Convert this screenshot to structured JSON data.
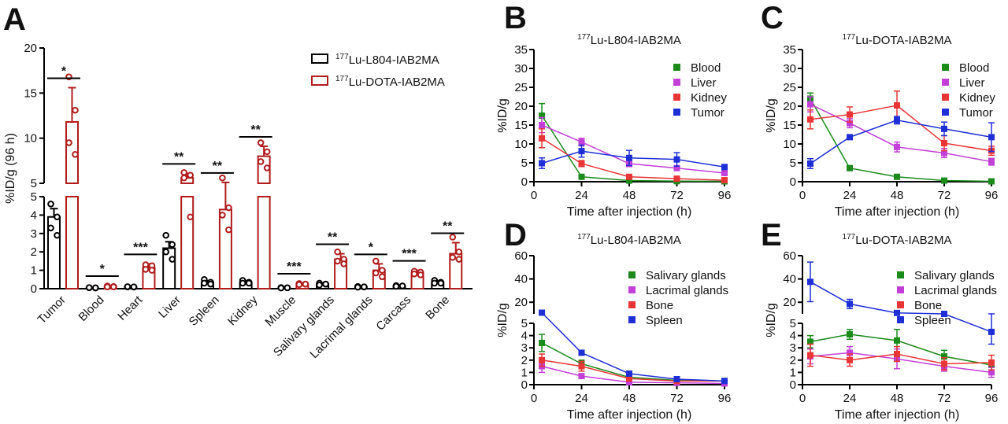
{
  "figure": {
    "panels": [
      {
        "id": "A",
        "letter": "A"
      },
      {
        "id": "B",
        "letter": "B"
      },
      {
        "id": "C",
        "letter": "C"
      },
      {
        "id": "D",
        "letter": "D"
      },
      {
        "id": "E",
        "letter": "E"
      }
    ]
  },
  "chart_data": [
    {
      "panel": "A",
      "type": "bar",
      "ylabel": "%ID/g (96 h)",
      "ylim": [
        0,
        20
      ],
      "y_axis_break": [
        5,
        5
      ],
      "y_ticks": [
        "0",
        "1",
        "2",
        "3",
        "4",
        "5",
        "5",
        "10",
        "15",
        "20"
      ],
      "categories": [
        "Tumor",
        "Blood",
        "Heart",
        "Liver",
        "Spleen",
        "Kidney",
        "Muscle",
        "Salivary glands",
        "Lacrimal glands",
        "Carcass",
        "Bone"
      ],
      "legend_position": "top-right",
      "series": [
        {
          "name": "177Lu-L804-IAB2MA",
          "label_sup": "177",
          "label_rest": "Lu-L804-IAB2MA",
          "color": "#000000",
          "values": [
            3.9,
            0.05,
            0.1,
            2.2,
            0.35,
            0.35,
            0.05,
            0.25,
            0.1,
            0.15,
            0.35
          ],
          "errors": [
            0.45,
            0.02,
            0.03,
            0.35,
            0.08,
            0.07,
            0.02,
            0.05,
            0.03,
            0.03,
            0.07
          ],
          "points": [
            [
              4.6,
              3.9,
              3.3,
              2.9
            ],
            [
              0.05,
              0.04,
              0.06,
              0.05
            ],
            [
              0.1,
              0.09,
              0.11,
              0.1
            ],
            [
              2.9,
              2.4,
              2.0,
              1.6
            ],
            [
              0.5,
              0.35,
              0.3,
              0.25
            ],
            [
              0.45,
              0.35,
              0.3,
              0.3
            ],
            [
              0.06,
              0.05,
              0.04,
              0.05
            ],
            [
              0.3,
              0.25,
              0.2,
              0.25
            ],
            [
              0.12,
              0.1,
              0.08,
              0.1
            ],
            [
              0.17,
              0.15,
              0.13,
              0.15
            ],
            [
              0.45,
              0.35,
              0.3,
              0.3
            ]
          ]
        },
        {
          "name": "177Lu-DOTA-IAB2MA",
          "label_sup": "177",
          "label_rest": "Lu-DOTA-IAB2MA",
          "color": "#b01c1c",
          "values": [
            11.8,
            0.12,
            1.15,
            5.6,
            4.3,
            8.0,
            0.25,
            1.6,
            1.0,
            0.85,
            1.9
          ],
          "errors": [
            3.8,
            0.05,
            0.2,
            0.5,
            0.8,
            1.1,
            0.05,
            0.3,
            0.35,
            0.15,
            0.6
          ],
          "points": [
            [
              16.8,
              13.1,
              9.5,
              8.2
            ],
            [
              0.15,
              0.12,
              0.1,
              0.1
            ],
            [
              1.3,
              1.25,
              1.05,
              1.0
            ],
            [
              6.2,
              5.9,
              5.6,
              3.9
            ],
            [
              5.6,
              4.4,
              4.0,
              3.2
            ],
            [
              9.5,
              8.5,
              7.4,
              6.7
            ],
            [
              0.28,
              0.25,
              0.22,
              0.25
            ],
            [
              2.0,
              1.6,
              1.5,
              1.35
            ],
            [
              1.5,
              1.0,
              0.85,
              0.65
            ],
            [
              0.95,
              0.9,
              0.8,
              0.75
            ],
            [
              2.8,
              2.0,
              1.7,
              1.6
            ]
          ]
        }
      ],
      "significance": [
        "*",
        "*",
        "***",
        "**",
        "**",
        "**",
        "***",
        "**",
        "*",
        "***",
        "**"
      ]
    },
    {
      "panel": "B",
      "type": "line",
      "title": "177Lu-L804-IAB2MA",
      "title_sup": "177",
      "title_rest": "Lu-L804-IAB2MA",
      "xlabel": "Time after injection (h)",
      "ylabel": "%ID/g",
      "x": [
        4,
        24,
        48,
        72,
        96
      ],
      "x_ticks": [
        "0",
        "24",
        "48",
        "72",
        "96"
      ],
      "y_ticks": [
        "0",
        "5",
        "10",
        "15",
        "20",
        "25",
        "30",
        "35"
      ],
      "xlim": [
        0,
        96
      ],
      "ylim": [
        0,
        35
      ],
      "legend_position": "top-right",
      "series": [
        {
          "name": "Blood",
          "color": "#1a8a1a",
          "values": [
            17.5,
            1.3,
            0.3,
            0.15,
            0.1
          ],
          "errors": [
            3.2,
            0.3,
            0.1,
            0.05,
            0.05
          ]
        },
        {
          "name": "Liver",
          "color": "#c23fd8",
          "values": [
            15.0,
            10.5,
            4.8,
            3.6,
            2.3
          ],
          "errors": [
            2.0,
            1.0,
            0.8,
            0.6,
            0.4
          ]
        },
        {
          "name": "Kidney",
          "color": "#e83535",
          "values": [
            11.5,
            4.8,
            1.3,
            0.8,
            0.4
          ],
          "errors": [
            2.5,
            0.8,
            0.3,
            0.2,
            0.1
          ]
        },
        {
          "name": "Tumor",
          "color": "#1f2fd6",
          "values": [
            4.9,
            8.1,
            6.3,
            5.9,
            3.9
          ],
          "errors": [
            1.4,
            1.6,
            2.0,
            1.8,
            0.6
          ]
        }
      ]
    },
    {
      "panel": "C",
      "type": "line",
      "title": "177Lu-DOTA-IAB2MA",
      "title_sup": "177",
      "title_rest": "Lu-DOTA-IAB2MA",
      "xlabel": "Time after injection (h)",
      "ylabel": "%ID/g",
      "x": [
        4,
        24,
        48,
        72,
        96
      ],
      "x_ticks": [
        "0",
        "24",
        "48",
        "72",
        "96"
      ],
      "y_ticks": [
        "0",
        "5",
        "10",
        "15",
        "20",
        "25",
        "30",
        "35"
      ],
      "xlim": [
        0,
        96
      ],
      "ylim": [
        0,
        35
      ],
      "legend_position": "top-right",
      "series": [
        {
          "name": "Blood",
          "color": "#1a8a1a",
          "values": [
            22.0,
            3.6,
            1.3,
            0.3,
            0.1
          ],
          "errors": [
            1.5,
            0.3,
            0.2,
            0.1,
            0.05
          ]
        },
        {
          "name": "Liver",
          "color": "#c23fd8",
          "values": [
            20.5,
            15.5,
            9.2,
            7.6,
            5.3
          ],
          "errors": [
            2.0,
            1.2,
            1.3,
            1.2,
            0.9
          ]
        },
        {
          "name": "Kidney",
          "color": "#e83535",
          "values": [
            16.5,
            17.8,
            20.2,
            10.2,
            8.2
          ],
          "errors": [
            2.5,
            2.0,
            3.8,
            2.0,
            1.2
          ]
        },
        {
          "name": "Tumor",
          "color": "#1f2fd6",
          "values": [
            4.8,
            11.8,
            16.3,
            14.0,
            11.8
          ],
          "errors": [
            1.3,
            0.6,
            1.0,
            1.8,
            3.8
          ]
        }
      ]
    },
    {
      "panel": "D",
      "type": "line",
      "title": "177Lu-L804-IAB2MA",
      "title_sup": "177",
      "title_rest": "Lu-L804-IAB2MA",
      "xlabel": "Time after injection (h)",
      "ylabel": "%ID/g",
      "x": [
        4,
        24,
        48,
        72,
        96
      ],
      "x_ticks": [
        "0",
        "24",
        "48",
        "72",
        "96"
      ],
      "y_ticks": [
        "0",
        "1",
        "2",
        "3",
        "4",
        "5",
        "20",
        "40",
        "60"
      ],
      "y_axis_break": [
        5,
        10
      ],
      "xlim": [
        0,
        96
      ],
      "legend_position": "top-right",
      "series": [
        {
          "name": "Salivary glands",
          "color": "#1a8a1a",
          "values": [
            3.4,
            1.7,
            0.6,
            0.35,
            0.3
          ],
          "errors": [
            0.7,
            0.3,
            0.1,
            0.05,
            0.05
          ]
        },
        {
          "name": "Lacrimal glands",
          "color": "#c23fd8",
          "values": [
            1.5,
            0.7,
            0.2,
            0.15,
            0.1
          ],
          "errors": [
            0.5,
            0.15,
            0.05,
            0.05,
            0.03
          ]
        },
        {
          "name": "Bone",
          "color": "#e83535",
          "values": [
            2.0,
            1.5,
            0.5,
            0.3,
            0.3
          ],
          "errors": [
            0.5,
            0.4,
            0.1,
            0.05,
            0.05
          ]
        },
        {
          "name": "Spleen",
          "color": "#1f2fd6",
          "values": [
            11.0,
            2.6,
            0.9,
            0.45,
            0.3
          ],
          "errors": [
            1.0,
            0.2,
            0.2,
            0.1,
            0.05
          ]
        }
      ]
    },
    {
      "panel": "E",
      "type": "line",
      "title": "177Lu-DOTA-IAB2MA",
      "title_sup": "177",
      "title_rest": "Lu-DOTA-IAB2MA",
      "xlabel": "Time after injection (h)",
      "ylabel": "%ID/g",
      "x": [
        4,
        24,
        48,
        72,
        96
      ],
      "x_ticks": [
        "0",
        "24",
        "48",
        "72",
        "96"
      ],
      "y_ticks": [
        "0",
        "1",
        "2",
        "3",
        "4",
        "5",
        "20",
        "40",
        "60"
      ],
      "y_axis_break": [
        5,
        10
      ],
      "xlim": [
        0,
        96
      ],
      "legend_position": "top-right",
      "series": [
        {
          "name": "Salivary glands",
          "color": "#1a8a1a",
          "values": [
            3.5,
            4.1,
            3.6,
            2.3,
            1.6
          ],
          "errors": [
            0.5,
            0.4,
            0.9,
            0.5,
            0.4
          ]
        },
        {
          "name": "Lacrimal glands",
          "color": "#c23fd8",
          "values": [
            2.3,
            2.6,
            2.1,
            1.5,
            1.0
          ],
          "errors": [
            0.6,
            0.5,
            0.8,
            0.4,
            0.4
          ]
        },
        {
          "name": "Bone",
          "color": "#e83535",
          "values": [
            2.4,
            2.0,
            2.5,
            1.7,
            1.8
          ],
          "errors": [
            0.9,
            0.5,
            0.6,
            0.5,
            0.6
          ]
        },
        {
          "name": "Spleen",
          "color": "#1f2fd6",
          "values": [
            37.5,
            18.5,
            10.8,
            9.3,
            4.3
          ],
          "errors": [
            17.0,
            4.0,
            1.0,
            1.0,
            1.0
          ]
        }
      ]
    }
  ]
}
